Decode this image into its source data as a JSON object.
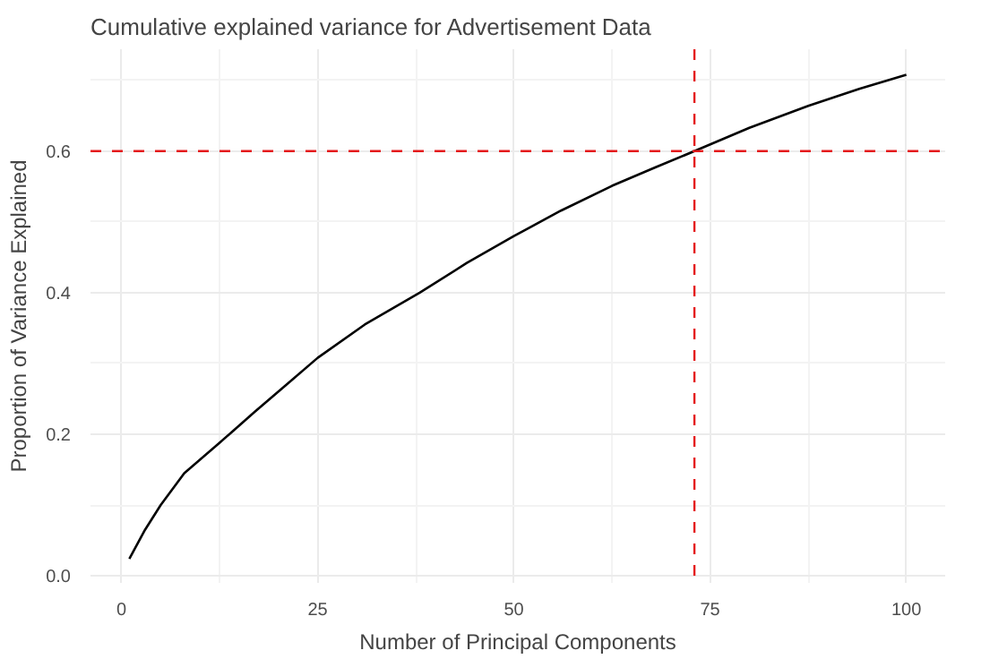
{
  "chart_data": {
    "type": "line",
    "title": "Cumulative explained variance for Advertisement Data",
    "xlabel": "Number of Principal Components",
    "ylabel": "Proportion of Variance Explained",
    "x": [
      1,
      3,
      5,
      8,
      12.5,
      17,
      21,
      25,
      31,
      38,
      44,
      50,
      56,
      62.5,
      68,
      73,
      80,
      87.5,
      94,
      100
    ],
    "series": [
      {
        "color": "#000000",
        "values": [
          0.024,
          0.065,
          0.1,
          0.145,
          0.188,
          0.232,
          0.27,
          0.308,
          0.355,
          0.4,
          0.442,
          0.48,
          0.516,
          0.551,
          0.577,
          0.6,
          0.633,
          0.664,
          0.688,
          0.708
        ]
      }
    ],
    "xlim": [
      -3.95,
      104.95
    ],
    "ylim": [
      -0.01,
      0.744
    ],
    "xticks": [
      0,
      25,
      50,
      75,
      100
    ],
    "yticks": [
      {
        "value": 0,
        "label": "0.0"
      },
      {
        "value": 0.2,
        "label": "0.2"
      },
      {
        "value": 0.4,
        "label": "0.4"
      },
      {
        "value": 0.6,
        "label": "0.6"
      }
    ],
    "grid": true,
    "line_style": "solid",
    "ref_lines": [
      {
        "axis": "x",
        "value": 73,
        "color": "#e41a1c",
        "line_style": "dashed"
      },
      {
        "axis": "y",
        "value": 0.6,
        "color": "#e41a1c",
        "line_style": "dashed"
      }
    ]
  }
}
